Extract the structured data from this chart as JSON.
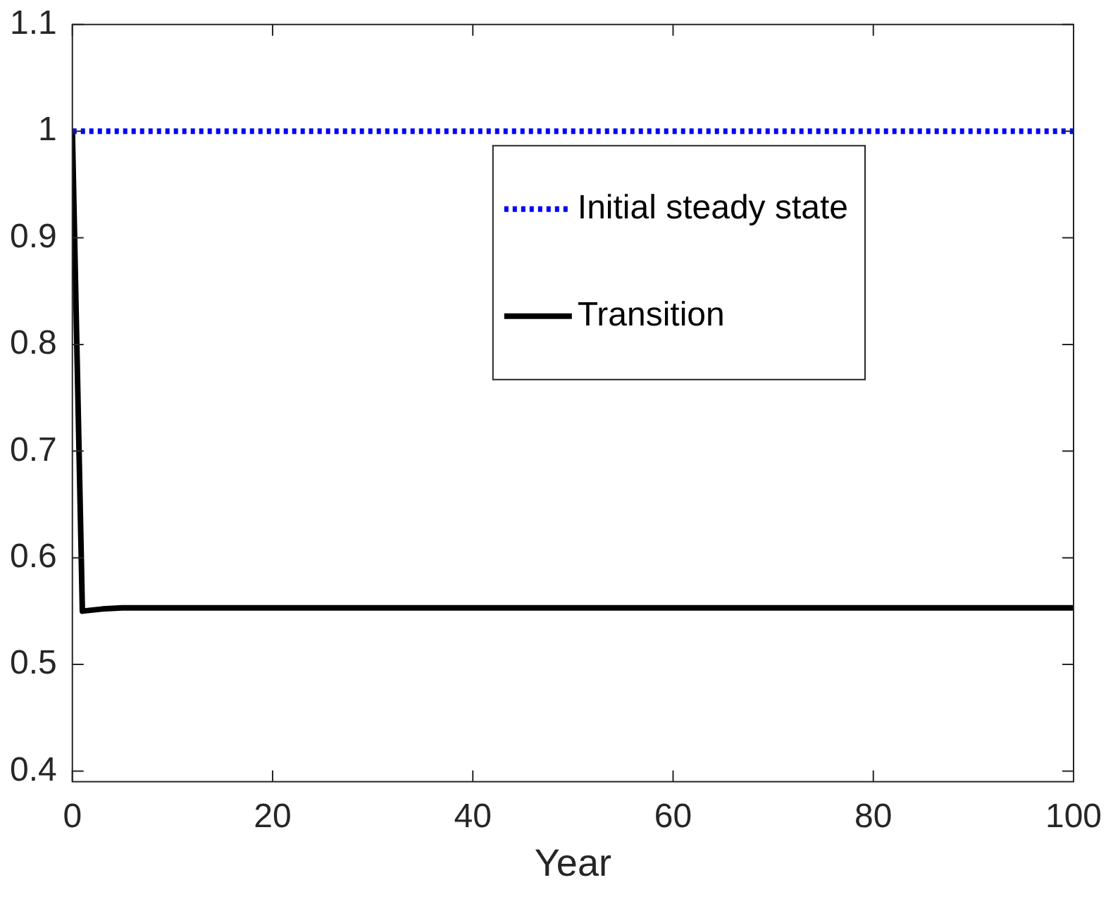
{
  "chart_data": {
    "type": "line",
    "xlabel": "Year",
    "xlim": [
      0,
      100
    ],
    "xticks": [
      0,
      20,
      40,
      60,
      80,
      100
    ],
    "ylim": [
      0.39,
      1.1
    ],
    "yticks": [
      0.4,
      0.5,
      0.6,
      0.7,
      0.8,
      0.9,
      1,
      1.1
    ],
    "grid": false,
    "legend": "top right",
    "marker": "none",
    "series": [
      {
        "name": "Initial steady state",
        "color": "#0000ff",
        "line_style": "dotted",
        "x": [
          0,
          100
        ],
        "values": [
          1,
          1
        ]
      },
      {
        "name": "Transition",
        "color": "#000000",
        "line_style": "solid",
        "x": [
          0,
          1,
          2,
          3,
          5,
          10,
          20,
          100
        ],
        "values": [
          1,
          0.55,
          0.551,
          0.552,
          0.553,
          0.553,
          0.553,
          0.553
        ]
      }
    ]
  }
}
